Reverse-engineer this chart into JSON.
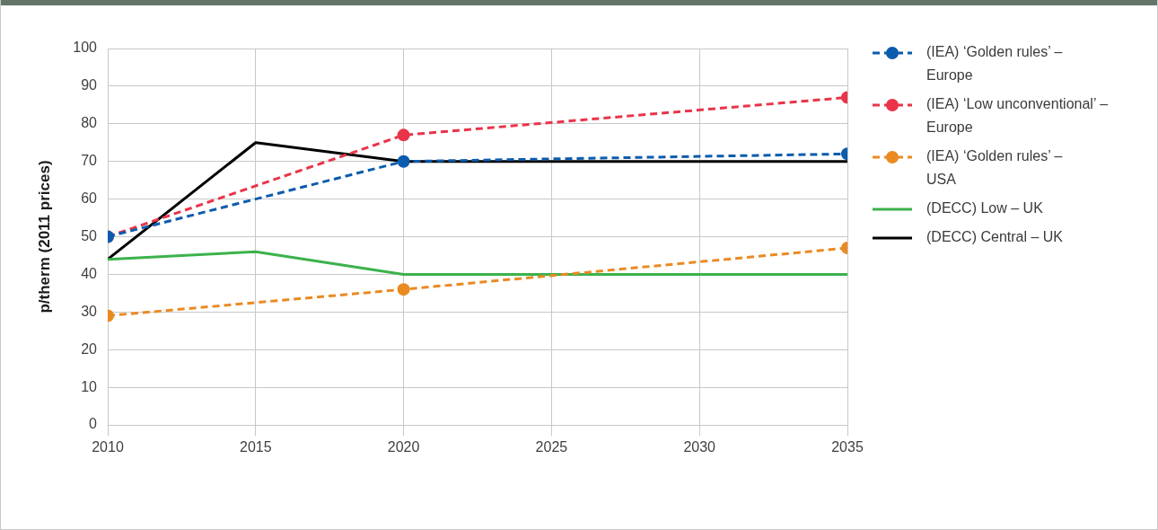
{
  "chart_data": {
    "type": "line",
    "ylabel": "p/therm (2011 prices)",
    "xlim": [
      2010,
      2035
    ],
    "xticks": [
      2010,
      2015,
      2020,
      2025,
      2030,
      2035
    ],
    "ylim": [
      0,
      100
    ],
    "yticks": [
      0,
      10,
      20,
      30,
      40,
      50,
      60,
      70,
      80,
      90,
      100
    ],
    "grid": true,
    "legend": "right",
    "series": [
      {
        "name": "(IEA) ‘Golden rules’ – Europe",
        "color": "#0b5cad",
        "x": [
          2010,
          2020,
          2035
        ],
        "values": [
          50,
          70,
          72
        ],
        "line_style": "dashed",
        "marker": "circle"
      },
      {
        "name": "(IEA) ‘Low unconventional’ – Europe",
        "color": "#e9344a",
        "x": [
          2010,
          2020,
          2035
        ],
        "values": [
          50,
          77,
          87
        ],
        "line_style": "dashed",
        "marker": "circle"
      },
      {
        "name": "(IEA) ‘Golden rules’ – USA",
        "color": "#ea8a22",
        "x": [
          2010,
          2020,
          2035
        ],
        "values": [
          29,
          36,
          47
        ],
        "line_style": "dashed",
        "marker": "circle"
      },
      {
        "name": "(DECC) Low – UK",
        "color": "#3cb24c",
        "x": [
          2010,
          2015,
          2020,
          2025,
          2030,
          2035
        ],
        "values": [
          44,
          46,
          40,
          40,
          40,
          40
        ],
        "line_style": "solid",
        "marker": "none"
      },
      {
        "name": "(DECC) Central – UK",
        "color": "#000000",
        "x": [
          2010,
          2015,
          2020,
          2025,
          2030,
          2035
        ],
        "values": [
          44,
          75,
          70,
          70,
          70,
          70
        ],
        "line_style": "solid",
        "marker": "none"
      }
    ]
  }
}
